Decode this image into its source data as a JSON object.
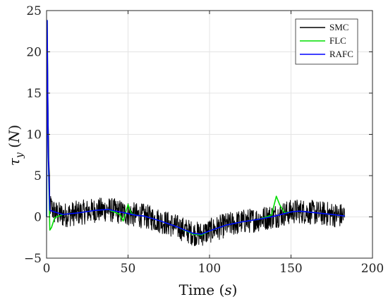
{
  "chart_data": {
    "type": "line",
    "xlabel": "Time (s)",
    "ylabel": "τ_y (N)",
    "xlim": [
      0,
      200
    ],
    "ylim": [
      -5,
      25
    ],
    "xticks": [
      "0",
      "50",
      "100",
      "150",
      "200"
    ],
    "yticks": [
      "−5",
      "0",
      "5",
      "10",
      "15",
      "20",
      "25"
    ],
    "grid": true,
    "legend_position": "top-right",
    "series": [
      {
        "name": "SMC",
        "color": "#000000",
        "noise_amplitude": 1.5,
        "x": [
          0,
          0.4,
          1,
          2,
          5,
          10,
          20,
          30,
          38,
          45,
          50,
          55,
          60,
          70,
          80,
          90,
          95,
          100,
          110,
          120,
          130,
          140,
          150,
          155,
          160,
          170,
          175,
          183
        ],
        "y": [
          0,
          23.8,
          12,
          1.5,
          0.5,
          0.2,
          0.5,
          0.8,
          0.9,
          0.6,
          0.4,
          0.2,
          0.1,
          -0.5,
          -1.2,
          -2.0,
          -2.1,
          -1.7,
          -1.0,
          -0.6,
          -0.3,
          0.1,
          0.6,
          0.7,
          0.6,
          0.4,
          0.3,
          0.1
        ]
      },
      {
        "name": "FLC",
        "color": "#00dd00",
        "x": [
          0,
          0.4,
          1,
          2,
          3,
          5,
          10,
          20,
          30,
          38,
          45,
          47,
          50,
          52,
          55,
          60,
          70,
          80,
          90,
          95,
          100,
          110,
          120,
          130,
          138,
          141,
          143,
          146,
          150,
          155,
          160,
          170,
          175,
          183
        ],
        "y": [
          0,
          23.8,
          8,
          -1.6,
          -1.3,
          -0.1,
          0.3,
          0.5,
          0.8,
          0.9,
          0.3,
          -0.5,
          1.5,
          0.4,
          0.2,
          0.1,
          -0.5,
          -1.2,
          -2.1,
          -2.2,
          -1.7,
          -1.0,
          -0.6,
          -0.3,
          0.2,
          2.5,
          1.5,
          0.5,
          0.6,
          0.7,
          0.6,
          0.4,
          0.3,
          0.1
        ]
      },
      {
        "name": "RAFC",
        "color": "#0000ff",
        "x": [
          0,
          0.4,
          1,
          2,
          5,
          10,
          20,
          30,
          38,
          45,
          50,
          55,
          60,
          70,
          80,
          90,
          95,
          100,
          110,
          120,
          130,
          140,
          150,
          155,
          160,
          170,
          175,
          183
        ],
        "y": [
          0,
          23.8,
          8,
          0.8,
          0.6,
          0.3,
          0.5,
          0.8,
          0.9,
          0.6,
          0.4,
          0.2,
          0.1,
          -0.5,
          -1.2,
          -2.0,
          -2.1,
          -1.7,
          -1.0,
          -0.6,
          -0.3,
          0.1,
          0.6,
          0.7,
          0.6,
          0.4,
          0.3,
          0.1
        ]
      }
    ]
  }
}
